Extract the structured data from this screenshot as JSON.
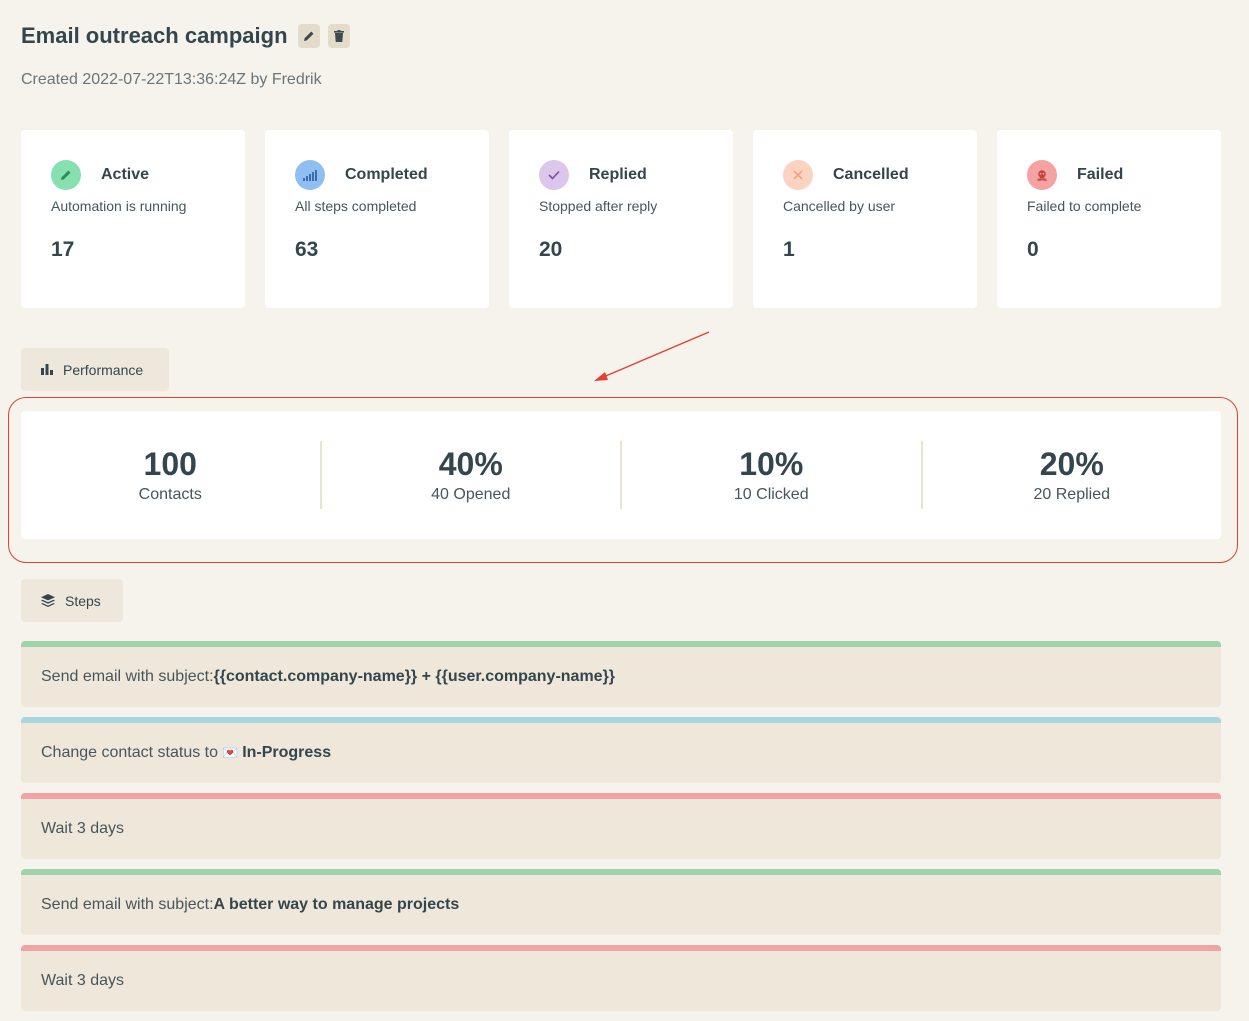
{
  "campaign": {
    "title": "Email outreach campaign",
    "meta": "Created 2022-07-22T13:36:24Z by Fredrik",
    "edit_icon": "pencil-icon",
    "delete_icon": "trash-icon"
  },
  "stats": [
    {
      "title": "Active",
      "subtitle": "Automation is running",
      "count": "17",
      "icon": "pencil-icon",
      "color": "#86e0b0",
      "icon_color": "#2f8f5b"
    },
    {
      "title": "Completed",
      "subtitle": "All steps completed",
      "count": "63",
      "icon": "signal-icon",
      "color": "#8fbff2",
      "icon_color": "#3b6ea8"
    },
    {
      "title": "Replied",
      "subtitle": "Stopped after reply",
      "count": "20",
      "icon": "check-icon",
      "color": "#dcc6ec",
      "icon_color": "#7a4fa3"
    },
    {
      "title": "Cancelled",
      "subtitle": "Cancelled by user",
      "count": "1",
      "icon": "x-icon",
      "color": "#fbd3c0",
      "icon_color": "#e8a080"
    },
    {
      "title": "Failed",
      "subtitle": "Failed to complete",
      "count": "0",
      "icon": "skull-icon",
      "color": "#f4a2a2",
      "icon_color": "#c84242"
    }
  ],
  "performance_button": "Performance",
  "performance": [
    {
      "value": "100",
      "label": "Contacts"
    },
    {
      "value": "40%",
      "label": "40 Opened"
    },
    {
      "value": "10%",
      "label": "10 Clicked"
    },
    {
      "value": "20%",
      "label": "20 Replied"
    }
  ],
  "steps_button": "Steps",
  "steps": [
    {
      "prefix": "Send email with subject: ",
      "bold": "{{contact.company-name}} + {{user.company-name}}",
      "color": "#9fd3a9"
    },
    {
      "prefix": "Change contact status to ",
      "emoji": "💌",
      "bold": "In-Progress",
      "color": "#a8d5de"
    },
    {
      "prefix": "Wait 3 days",
      "bold": "",
      "color": "#f2a3a3"
    },
    {
      "prefix": "Send email with subject: ",
      "bold": "A better way to manage projects",
      "color": "#9fd3a9"
    },
    {
      "prefix": "Wait 3 days",
      "bold": "",
      "color": "#f2a3a3"
    }
  ],
  "annotation_color": "#e3412f"
}
